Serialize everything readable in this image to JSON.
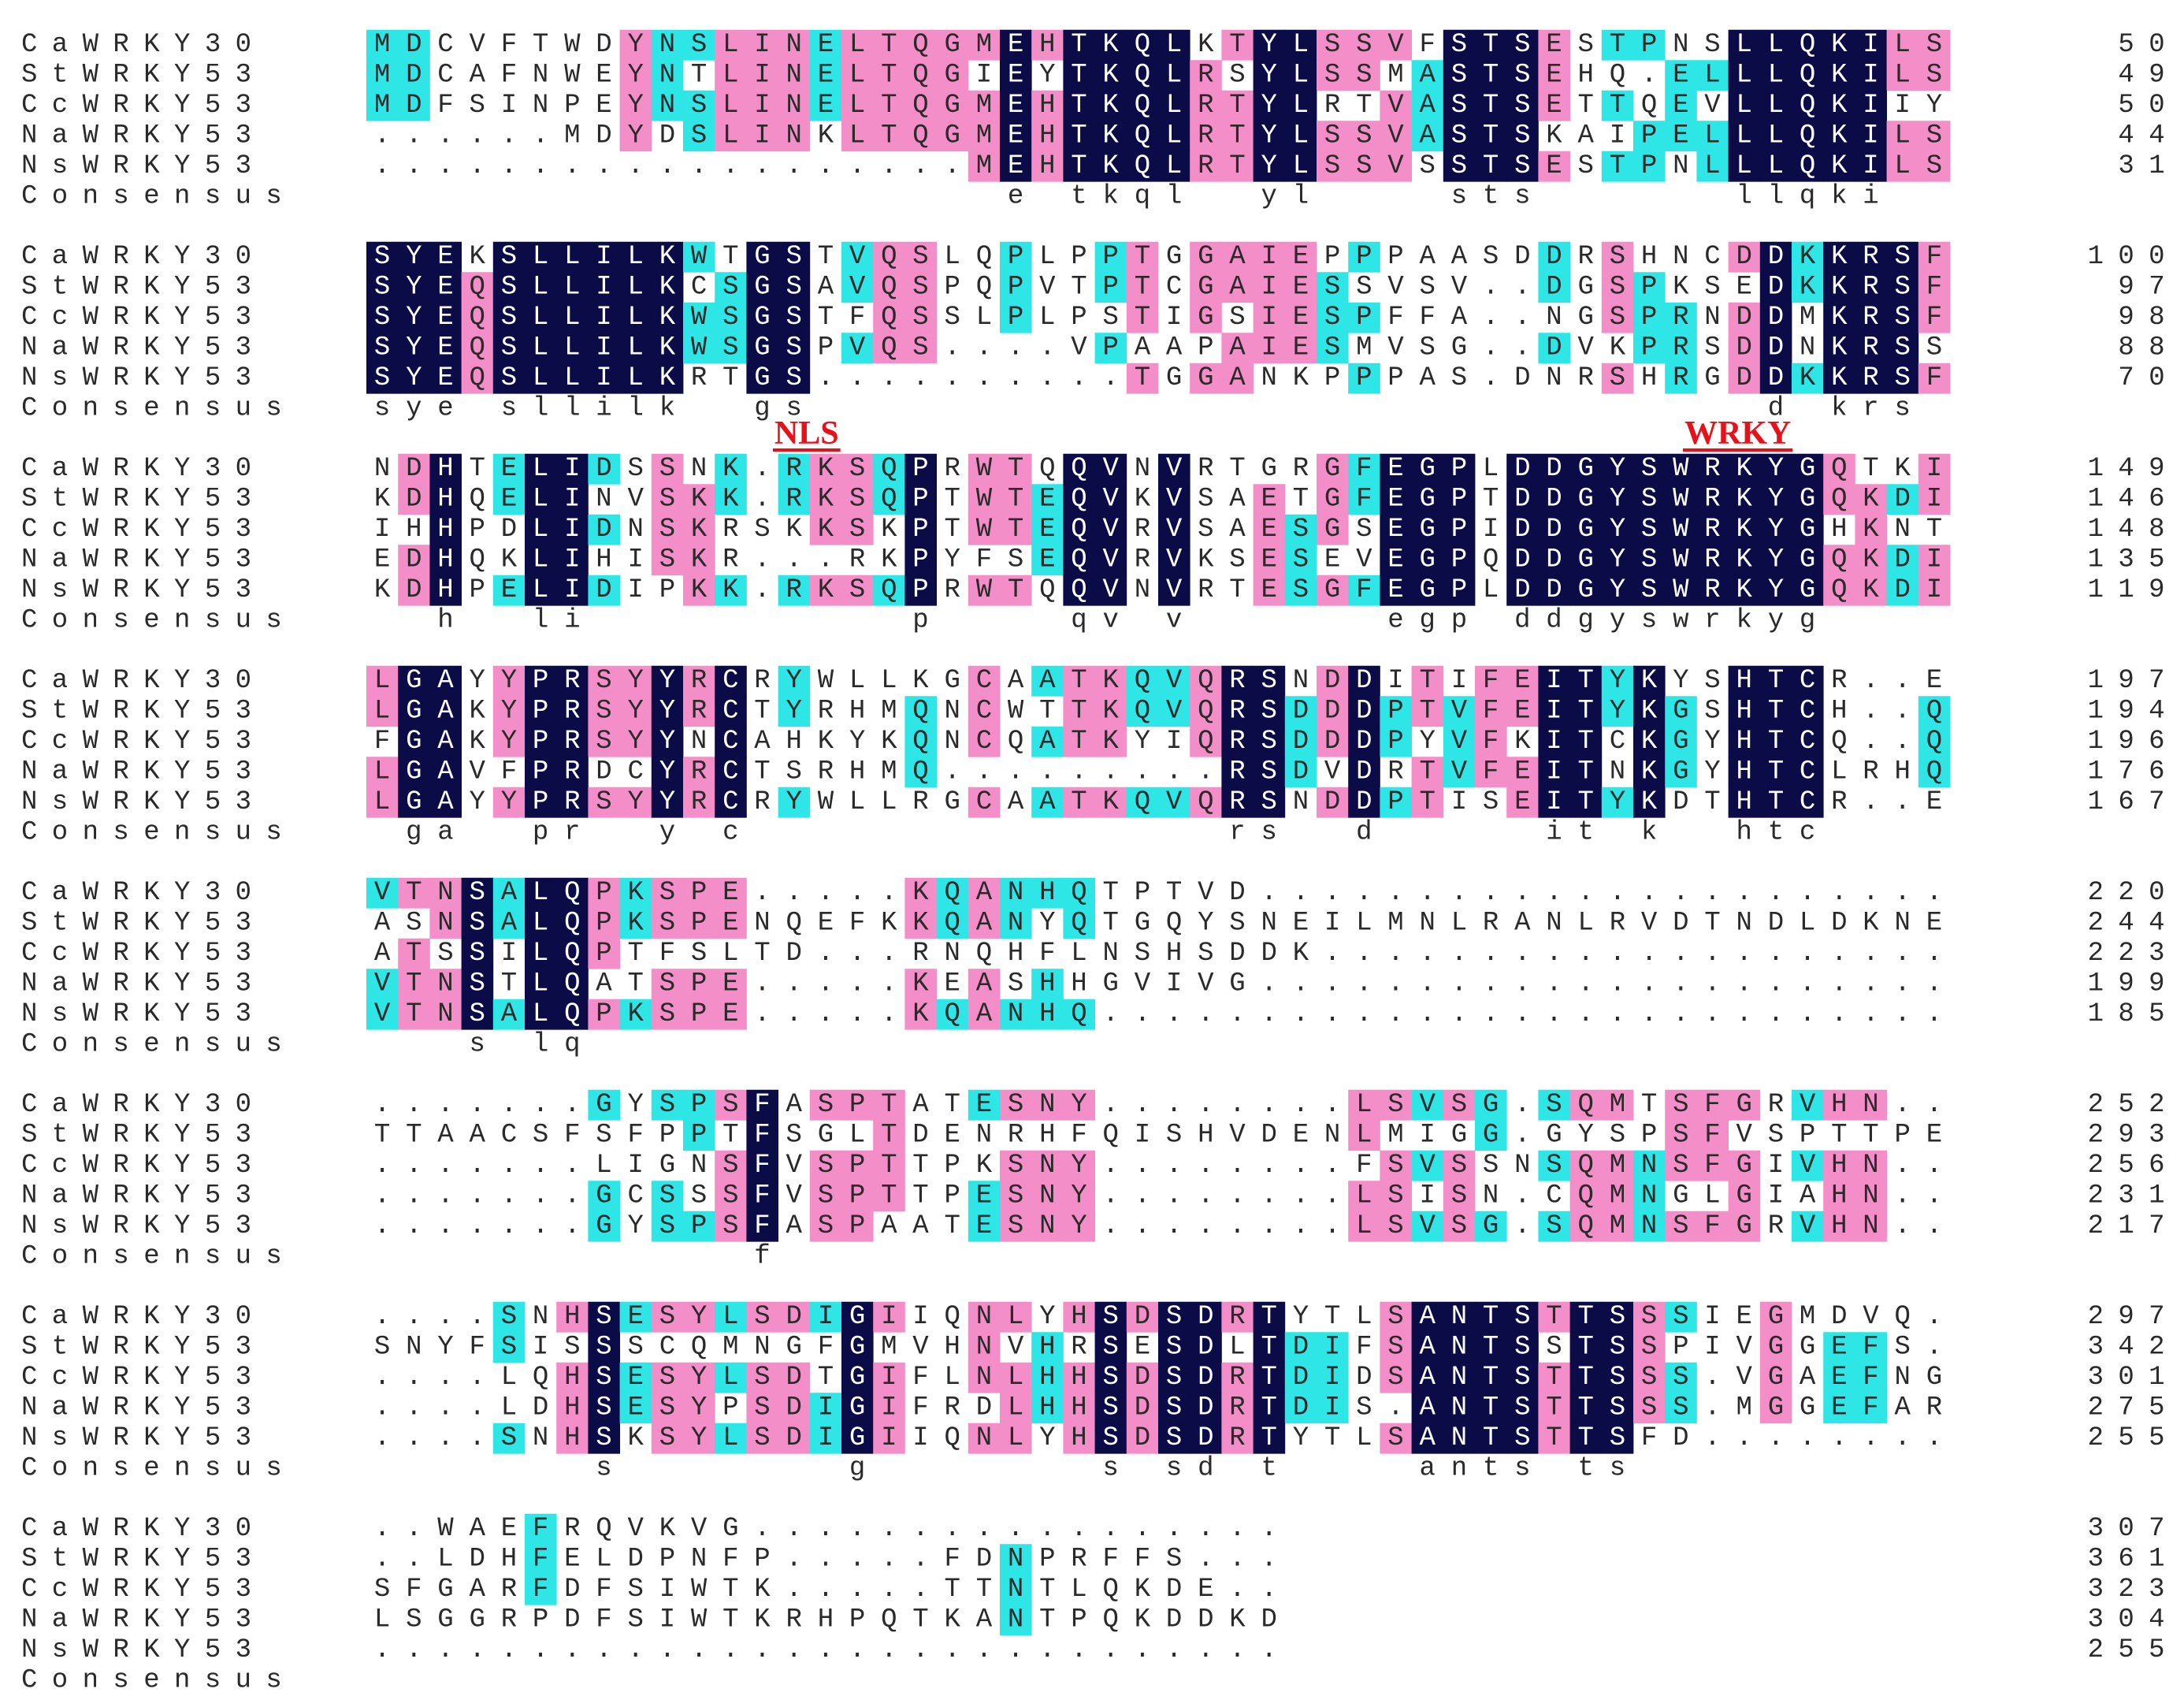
{
  "alignment": {
    "names": [
      "CaWRKY30",
      "StWRKY53",
      "CcWRKY53",
      "NaWRKY53",
      "NsWRKY53"
    ],
    "consensus_label": "Consensus",
    "motifs": [
      {
        "label": "NLS"
      },
      {
        "label": "WRKY"
      }
    ],
    "blocks": [
      {
        "seqs": [
          "MDCVFTWDYNSLINELTQGMEHTKQLKTYLSSVFSTSESTPNSLLQKILS",
          "MDCAFNWEYNTLINELTQGIEYTKQLRSYLSSMASTSEHQ.ELLLQKILS",
          "MDFSINPEYNSLINELTQGMEHTKQLRTYLRTVASTSETTQEVLLQKIIY",
          "......MDYDSLINKLTQGMEHTKQLRTYLSSVASTSKAIPELLLQKILS",
          "...................MEHTKQLRTYLSSVSSTSESTPNLLLQKILS"
        ],
        "ends": [
          50,
          49,
          50,
          44,
          31
        ],
        "consensus": "                    e tkql  yl    sts      llqki"
      },
      {
        "seqs": [
          "SYEKSLLILKWTGSTVQSLQPLPPTGGAIEPPPAASDDRSHNCDDKKRSF",
          "SYEQSLLILKCSGSAVQSPQPVTPTCGAIESSVSV..DGSPKSEDKKRSF",
          "SYEQSLLILKWSGSTFQSSLPLPSTIGSIESPFFA..NGSPRNDDMKRSF",
          "SYEQSLLILKWSGSPVQS....VPAAPAIESMVSG..DVKPRSDDNKRSS",
          "SYEQSLLILKRTGS..........TGGANKPPPAS.DNRSHRGDDKKRSF"
        ],
        "ends": [
          100,
          97,
          98,
          88,
          70
        ],
        "consensus": "sye sllilk  gs                              d krs"
      },
      {
        "seqs": [
          "NDHTELIDSSNK.RKSQPRWTQQVNVRTGRGFEGPLDDGYSWRKYGQTKI",
          "KDHQELINVSKK.RKSQPTWTEQVKVSAETGFEGPTDDGYSWRKYGQKDI",
          "IHHPDLIDNSKRSKKSKPTWTEQVRVSAESGSEGPIDDGYSWRKYGHKNT",
          "EDHQKLIHISKR...RKPYFSEQVRVKSESEVEGPQDDGYSWRKYGQKDI",
          "KDHPELIDIPKK.RKSQPRWTQQVNVRTESGFEGPLDDGYSWRKYGQKDI"
        ],
        "ends": [
          149,
          146,
          148,
          135,
          119
        ],
        "consensus": "  h  li          p    qv v      egp ddgyswrkyg"
      },
      {
        "seqs": [
          "LGAYYPRSYYRCRYWLLKGCAATKQVQRSNDDITIFEITYKYSHTCR..E",
          "LGAKYPRSYYRCTYRHMQNCWTTKQVQRSDDDPTVFEITYKGSHTCH..Q",
          "FGAKYPRSYYNCAHKYKQNCQATKYIQRSDDDPYVFKITCKGYHTCQ..Q",
          "LGAVFPRDCYRCTSRHMQ.........RSDVDRTVFEITNKGYHTCLRHQ",
          "LGAYYPRSYYRCRYWLLRGCAATKQVQRSNDDPTISEITYKDTHTCR..E"
        ],
        "ends": [
          197,
          194,
          196,
          176,
          167
        ],
        "consensus": " ga  pr  y c               rs  d     it k  htc"
      },
      {
        "seqs": [
          "VTNSALQPKSPE.....KQANHQTPTVD......................",
          "ASNSALQPKSPENQEFKKQANYQTGQYSNEILMNLRANLRVDTNDLDKNE",
          "ATSSILQPTFSLTD...RNQHFLNSHSDDK....................",
          "VTNSTLQATSPE.....KEASHHGVIVG......................",
          "VTNSALQPKSPE.....KQANHQ..........................."
        ],
        "ends": [
          220,
          244,
          223,
          199,
          185
        ],
        "consensus": "   s lq"
      },
      {
        "seqs": [
          ".......GYSPSFASPTATESNY........LSVSG.SQMTSFGRVHN..",
          "TTAACSFSFPPTFSGLTDENRHFQISHVDENLMIGG.GYSPSFVSPTTPE",
          ".......LIGNSFVSPTTPKSNY........FSVSSNSQMNSFGIVHN..",
          ".......GCSSSFVSPTTPESNY........LSISN.CQMNGLGIAHN..",
          ".......GYSPSFASPAATESNY........LSVSG.SQMNSFGRVHN.."
        ],
        "ends": [
          252,
          293,
          256,
          231,
          217
        ],
        "consensus": "            f"
      },
      {
        "seqs": [
          "....SNHSESYLSDIGIIQNLYHSDSDRTYTLSANTSTTSSSIEGMDVQ.",
          "SNYFSISSSCQMNGFGMVHNVHRSESDLTDIFSANTSSTSSPIVGGEFS.",
          "....LQHSESYLSDTGIFLNLHHSDSDRTDIDSANTSTTSSS.VGAEFNG",
          "....LDHSESYPSDIGIFRDLHHSDSDRTDIS.ANTSTTSSS.MGGEFAR",
          "....SNHSKSYLSDIGIIQNLYHSDSDRTYTLSANTSTTSFD........"
        ],
        "ends": [
          297,
          342,
          301,
          275,
          255
        ],
        "consensus": "       s       g       s sd t    ants ts"
      },
      {
        "seqs": [
          "..WAEFRQVKVG.................",
          "..LDHFELDPNFP.....FDNPRFFS...",
          "SFGARFDFSIWTK.....TTNTLQKDE..",
          "LSGGRPDFSIWTKRHPQTKANTPQKDDKD",
          "............................."
        ],
        "ends": [
          307,
          361,
          323,
          304,
          255
        ]
      }
    ]
  }
}
